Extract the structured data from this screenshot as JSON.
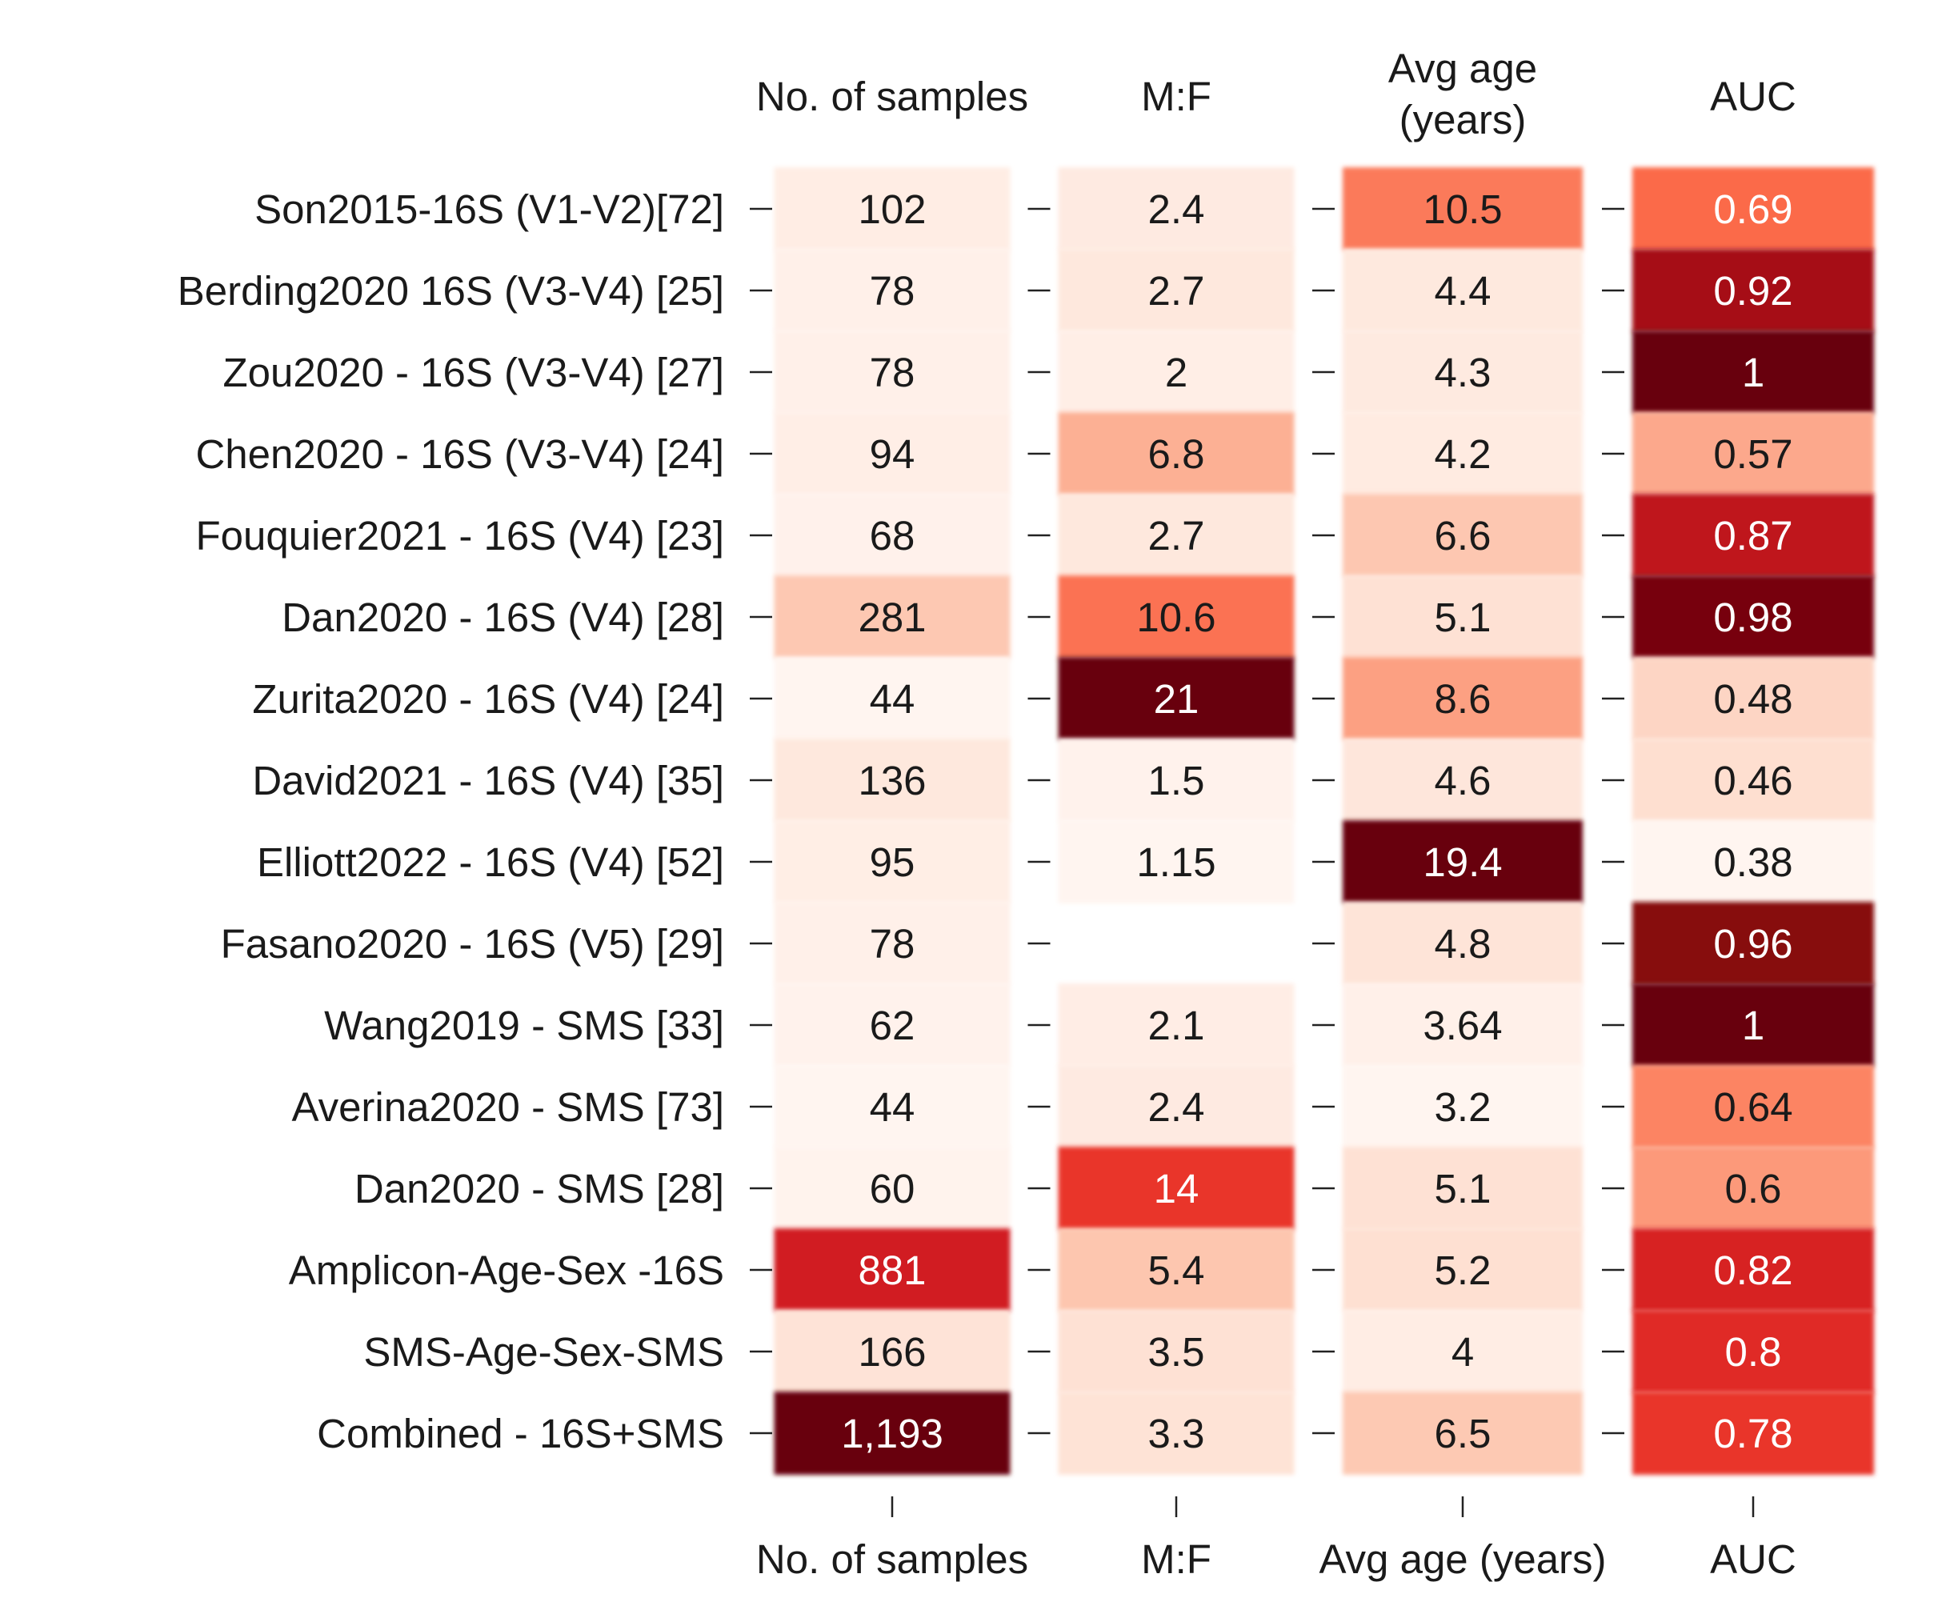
{
  "chart_data": {
    "type": "heatmap",
    "title": "",
    "columns_top": [
      "No. of samples",
      "M:F",
      "Avg age\n(years)",
      "AUC"
    ],
    "columns_bottom": [
      "No. of samples",
      "M:F",
      "Avg age (years)",
      "AUC"
    ],
    "rows": [
      "Son2015-16S (V1-V2)[72]",
      "Berding2020 16S (V3-V4) [25]",
      "Zou2020 - 16S (V3-V4) [27]",
      "Chen2020 - 16S (V3-V4) [24]",
      "Fouquier2021 - 16S (V4) [23]",
      "Dan2020 - 16S (V4) [28]",
      "Zurita2020 - 16S (V4) [24]",
      "David2021 - 16S (V4) [35]",
      "Elliott2022 - 16S (V4) [52]",
      "Fasano2020 - 16S (V5) [29]",
      "Wang2019 - SMS [33]",
      "Averina2020 - SMS [73]",
      "Dan2020 - SMS [28]",
      "Amplicon-Age-Sex -16S",
      "SMS-Age-Sex-SMS",
      "Combined - 16S+SMS"
    ],
    "values": [
      [
        102,
        2.4,
        10.5,
        0.69
      ],
      [
        78,
        2.7,
        4.4,
        0.92
      ],
      [
        78,
        2,
        4.3,
        1
      ],
      [
        94,
        6.8,
        4.2,
        0.57
      ],
      [
        68,
        2.7,
        6.6,
        0.87
      ],
      [
        281,
        10.6,
        5.1,
        0.98
      ],
      [
        44,
        21,
        8.6,
        0.48
      ],
      [
        136,
        1.5,
        4.6,
        0.46
      ],
      [
        95,
        1.15,
        19.4,
        0.38
      ],
      [
        78,
        null,
        4.8,
        0.96
      ],
      [
        62,
        2.1,
        3.64,
        1
      ],
      [
        44,
        2.4,
        3.2,
        0.64
      ],
      [
        60,
        14,
        5.1,
        0.6
      ],
      [
        881,
        5.4,
        5.2,
        0.82
      ],
      [
        166,
        3.5,
        4,
        0.8
      ],
      [
        1193,
        3.3,
        6.5,
        0.78
      ]
    ],
    "labels": [
      [
        "102",
        "2.4",
        "10.5",
        "0.69"
      ],
      [
        "78",
        "2.7",
        "4.4",
        "0.92"
      ],
      [
        "78",
        "2",
        "4.3",
        "1"
      ],
      [
        "94",
        "6.8",
        "4.2",
        "0.57"
      ],
      [
        "68",
        "2.7",
        "6.6",
        "0.87"
      ],
      [
        "281",
        "10.6",
        "5.1",
        "0.98"
      ],
      [
        "44",
        "21",
        "8.6",
        "0.48"
      ],
      [
        "136",
        "1.5",
        "4.6",
        "0.46"
      ],
      [
        "95",
        "1.15",
        "19.4",
        "0.38"
      ],
      [
        "78",
        "",
        "4.8",
        "0.96"
      ],
      [
        "62",
        "2.1",
        "3.64",
        "1"
      ],
      [
        "44",
        "2.4",
        "3.2",
        "0.64"
      ],
      [
        "60",
        "14",
        "5.1",
        "0.6"
      ],
      [
        "881",
        "5.4",
        "5.2",
        "0.82"
      ],
      [
        "166",
        "3.5",
        "4",
        "0.8"
      ],
      [
        "1,193",
        "3.3",
        "6.5",
        "0.78"
      ]
    ],
    "colormap": "Reds",
    "color_scale_per_column": true,
    "column_ranges": [
      [
        44,
        1193
      ],
      [
        1.15,
        21
      ],
      [
        3.2,
        19.4
      ],
      [
        0.38,
        1
      ]
    ],
    "colors": {
      "low": "#fff5f0",
      "mid": "#fb6a4a",
      "high": "#67000d"
    },
    "grid": false,
    "legend": "none"
  }
}
